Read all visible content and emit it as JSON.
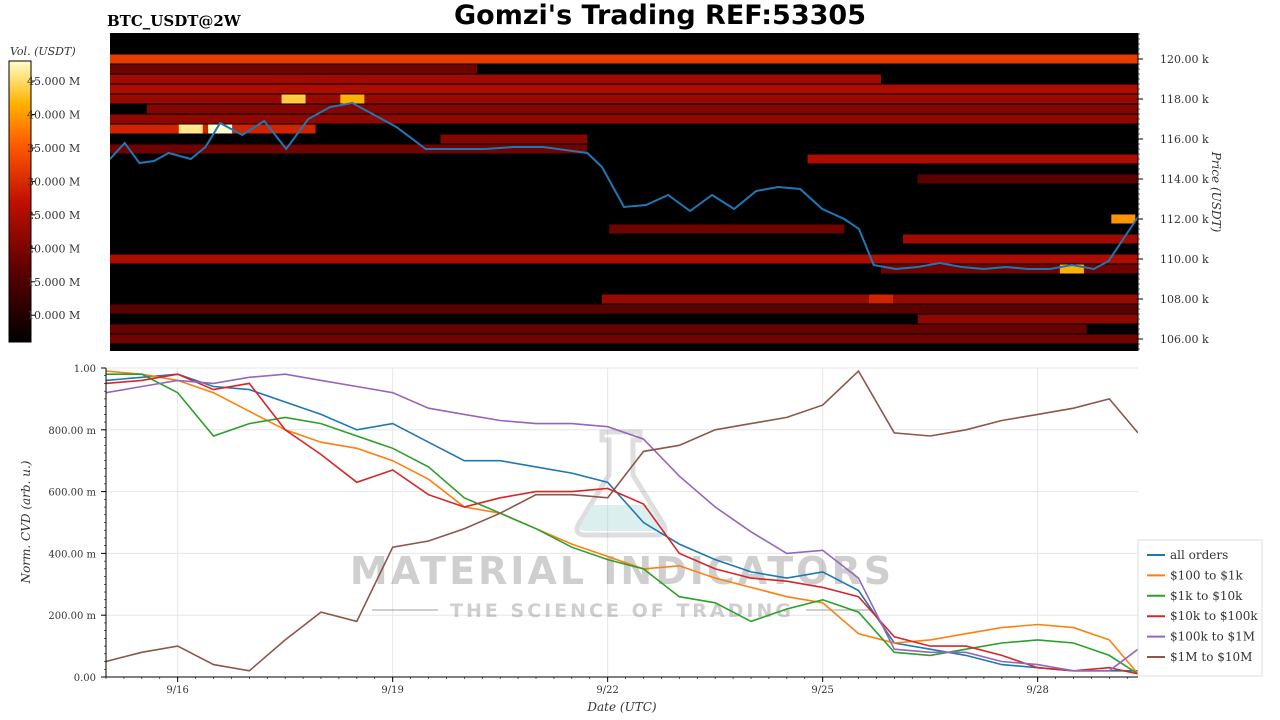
{
  "header": {
    "symbol": "BTC_USDT@2W",
    "title": "Gomzi's Trading REF:53305"
  },
  "watermark": {
    "line1": "MATERIAL INDICATORS",
    "line2": "THE SCIENCE OF TRADING"
  },
  "colors": {
    "heatmap_bg": "#000000",
    "price_line": "#1f77b4",
    "all_orders": "#1f77b4",
    "r100_1k": "#ff7f0e",
    "r1k_10k": "#2ca02c",
    "r10k_100k": "#d62728",
    "r100k_1m": "#9467bd",
    "r1m_10m": "#8c564b"
  },
  "chart_data": [
    {
      "type": "heatmap",
      "title": "Gomzi's Trading REF:53305",
      "colorbar_label": "Vol. (USDT)",
      "colorbar_ticks": [
        "45.000 M",
        "40.000 M",
        "35.000 M",
        "30.000 M",
        "25.000 M",
        "20.000 M",
        "15.000 M",
        "10.000 M"
      ],
      "colorbar_values": [
        45,
        40,
        35,
        30,
        25,
        20,
        15,
        10
      ],
      "colorbar_range": [
        6,
        48
      ],
      "ylabel": "Price (USDT)",
      "y_ticks": [
        "120.00 k",
        "118.00 k",
        "116.00 k",
        "114.00 k",
        "112.00 k",
        "110.00 k",
        "108.00 k",
        "106.00 k"
      ],
      "y_tick_values": [
        120,
        118,
        116,
        114,
        112,
        110,
        108,
        106
      ],
      "ylim": [
        105.4,
        121.3
      ],
      "x_range_days": [
        15.5,
        29.5
      ],
      "price_series": {
        "x": [
          15.5,
          15.7,
          15.9,
          16.1,
          16.3,
          16.6,
          16.8,
          17.0,
          17.3,
          17.6,
          17.9,
          18.2,
          18.5,
          18.8,
          19.1,
          19.4,
          19.8,
          20.2,
          20.6,
          21.0,
          21.4,
          21.8,
          22.0,
          22.2,
          22.5,
          22.8,
          23.1,
          23.4,
          23.7,
          24.0,
          24.3,
          24.6,
          24.9,
          25.2,
          25.5,
          25.7,
          25.9,
          26.2,
          26.5,
          26.8,
          27.1,
          27.4,
          27.7,
          28.0,
          28.3,
          28.6,
          28.9,
          29.1,
          29.3,
          29.5
        ],
        "y": [
          115.0,
          115.8,
          114.8,
          114.9,
          115.3,
          115.0,
          115.6,
          116.8,
          116.2,
          116.9,
          115.5,
          117.0,
          117.6,
          117.8,
          117.2,
          116.6,
          115.5,
          115.5,
          115.5,
          115.6,
          115.6,
          115.4,
          115.3,
          114.6,
          112.6,
          112.7,
          113.2,
          112.4,
          113.2,
          112.5,
          113.4,
          113.6,
          113.5,
          112.5,
          112.0,
          111.5,
          109.7,
          109.5,
          109.6,
          109.8,
          109.6,
          109.5,
          109.6,
          109.5,
          109.5,
          109.7,
          109.5,
          109.9,
          111.0,
          112.1
        ]
      },
      "heat_bands": [
        {
          "price": 120.0,
          "start": 15.5,
          "end": 29.5,
          "level": 0.62
        },
        {
          "price": 119.5,
          "start": 15.5,
          "end": 20.5,
          "level": 0.3
        },
        {
          "price": 119.0,
          "start": 15.5,
          "end": 26.0,
          "level": 0.42
        },
        {
          "price": 118.5,
          "start": 15.5,
          "end": 29.5,
          "level": 0.45
        },
        {
          "price": 118.0,
          "start": 15.5,
          "end": 29.5,
          "level": 0.4
        },
        {
          "price": 117.5,
          "start": 16.0,
          "end": 29.5,
          "level": 0.35
        },
        {
          "price": 117.0,
          "start": 15.5,
          "end": 29.5,
          "level": 0.38
        },
        {
          "price": 116.5,
          "start": 15.5,
          "end": 18.3,
          "level": 0.55
        },
        {
          "price": 116.0,
          "start": 20.0,
          "end": 22.0,
          "level": 0.35
        },
        {
          "price": 115.5,
          "start": 15.5,
          "end": 22.0,
          "level": 0.3
        },
        {
          "price": 115.0,
          "start": 25.0,
          "end": 29.5,
          "level": 0.45
        },
        {
          "price": 114.0,
          "start": 26.5,
          "end": 29.5,
          "level": 0.25
        },
        {
          "price": 111.5,
          "start": 22.3,
          "end": 25.5,
          "level": 0.3
        },
        {
          "price": 111.0,
          "start": 26.3,
          "end": 29.5,
          "level": 0.42
        },
        {
          "price": 110.0,
          "start": 15.5,
          "end": 29.5,
          "level": 0.45
        },
        {
          "price": 109.5,
          "start": 26.0,
          "end": 29.5,
          "level": 0.3
        },
        {
          "price": 108.0,
          "start": 22.2,
          "end": 29.5,
          "level": 0.4
        },
        {
          "price": 107.5,
          "start": 15.5,
          "end": 29.5,
          "level": 0.25
        },
        {
          "price": 107.0,
          "start": 26.5,
          "end": 29.5,
          "level": 0.38
        },
        {
          "price": 106.5,
          "start": 15.5,
          "end": 28.8,
          "level": 0.28
        },
        {
          "price": 106.0,
          "start": 15.5,
          "end": 29.5,
          "level": 0.3
        }
      ],
      "hot_spots": [
        {
          "x": 16.6,
          "price": 116.5,
          "level": 0.95
        },
        {
          "x": 17.0,
          "price": 116.5,
          "level": 1.0
        },
        {
          "x": 18.0,
          "price": 118.0,
          "level": 0.9
        },
        {
          "x": 18.8,
          "price": 118.0,
          "level": 0.85
        },
        {
          "x": 26.0,
          "price": 108.0,
          "level": 0.55
        },
        {
          "x": 28.6,
          "price": 109.5,
          "level": 0.85
        },
        {
          "x": 29.3,
          "price": 112.0,
          "level": 0.8
        }
      ]
    },
    {
      "type": "line",
      "xlabel": "Date (UTC)",
      "ylabel": "Norm. CVD (arb. u.)",
      "x_tick_labels": [
        "9/16",
        "9/19",
        "9/22",
        "9/25",
        "9/28"
      ],
      "x_tick_values": [
        16,
        19,
        22,
        25,
        28
      ],
      "xlim": [
        15.0,
        29.4
      ],
      "y_tick_labels": [
        "1.00",
        "800.00 m",
        "600.00 m",
        "400.00 m",
        "200.00 m",
        "0.00"
      ],
      "y_tick_values": [
        1.0,
        0.8,
        0.6,
        0.4,
        0.2,
        0.0
      ],
      "ylim": [
        0.0,
        1.0
      ],
      "legend_position": "bottom-right",
      "x": [
        15.0,
        15.5,
        16.0,
        16.5,
        17.0,
        17.5,
        18.0,
        18.5,
        19.0,
        19.5,
        20.0,
        20.5,
        21.0,
        21.5,
        22.0,
        22.5,
        23.0,
        23.5,
        24.0,
        24.5,
        25.0,
        25.5,
        26.0,
        26.5,
        27.0,
        27.5,
        28.0,
        28.5,
        29.0,
        29.4
      ],
      "series": [
        {
          "name": "all orders",
          "values": [
            0.96,
            0.97,
            0.98,
            0.94,
            0.93,
            0.89,
            0.85,
            0.8,
            0.82,
            0.76,
            0.7,
            0.7,
            0.68,
            0.66,
            0.63,
            0.5,
            0.43,
            0.38,
            0.34,
            0.32,
            0.34,
            0.28,
            0.11,
            0.09,
            0.07,
            0.04,
            0.03,
            0.02,
            0.02,
            0.02
          ]
        },
        {
          "name": "$100 to $1k",
          "values": [
            0.99,
            0.98,
            0.96,
            0.92,
            0.86,
            0.8,
            0.76,
            0.74,
            0.7,
            0.64,
            0.55,
            0.53,
            0.48,
            0.43,
            0.39,
            0.35,
            0.36,
            0.32,
            0.29,
            0.26,
            0.24,
            0.14,
            0.11,
            0.12,
            0.14,
            0.16,
            0.17,
            0.16,
            0.12,
            0.01
          ]
        },
        {
          "name": "$1k to $10k",
          "values": [
            0.98,
            0.98,
            0.92,
            0.78,
            0.82,
            0.84,
            0.82,
            0.78,
            0.74,
            0.68,
            0.58,
            0.53,
            0.48,
            0.42,
            0.38,
            0.35,
            0.26,
            0.24,
            0.18,
            0.22,
            0.25,
            0.21,
            0.08,
            0.07,
            0.09,
            0.11,
            0.12,
            0.11,
            0.07,
            0.01
          ]
        },
        {
          "name": "$10k to $100k",
          "values": [
            0.95,
            0.96,
            0.98,
            0.93,
            0.95,
            0.8,
            0.72,
            0.63,
            0.67,
            0.59,
            0.55,
            0.58,
            0.6,
            0.6,
            0.61,
            0.56,
            0.4,
            0.35,
            0.32,
            0.31,
            0.29,
            0.26,
            0.13,
            0.1,
            0.1,
            0.07,
            0.03,
            0.02,
            0.03,
            0.01
          ]
        },
        {
          "name": "$100k to $1M",
          "values": [
            0.92,
            0.94,
            0.96,
            0.95,
            0.97,
            0.98,
            0.96,
            0.94,
            0.92,
            0.87,
            0.85,
            0.83,
            0.82,
            0.82,
            0.81,
            0.77,
            0.65,
            0.55,
            0.47,
            0.4,
            0.41,
            0.32,
            0.09,
            0.08,
            0.08,
            0.05,
            0.04,
            0.02,
            0.02,
            0.09
          ]
        },
        {
          "name": "$1M to $10M",
          "values": [
            0.05,
            0.08,
            0.1,
            0.04,
            0.02,
            0.12,
            0.21,
            0.18,
            0.42,
            0.44,
            0.48,
            0.53,
            0.59,
            0.59,
            0.58,
            0.73,
            0.75,
            0.8,
            0.82,
            0.84,
            0.88,
            0.99,
            0.79,
            0.78,
            0.8,
            0.83,
            0.85,
            0.87,
            0.9,
            0.79
          ]
        }
      ]
    }
  ]
}
